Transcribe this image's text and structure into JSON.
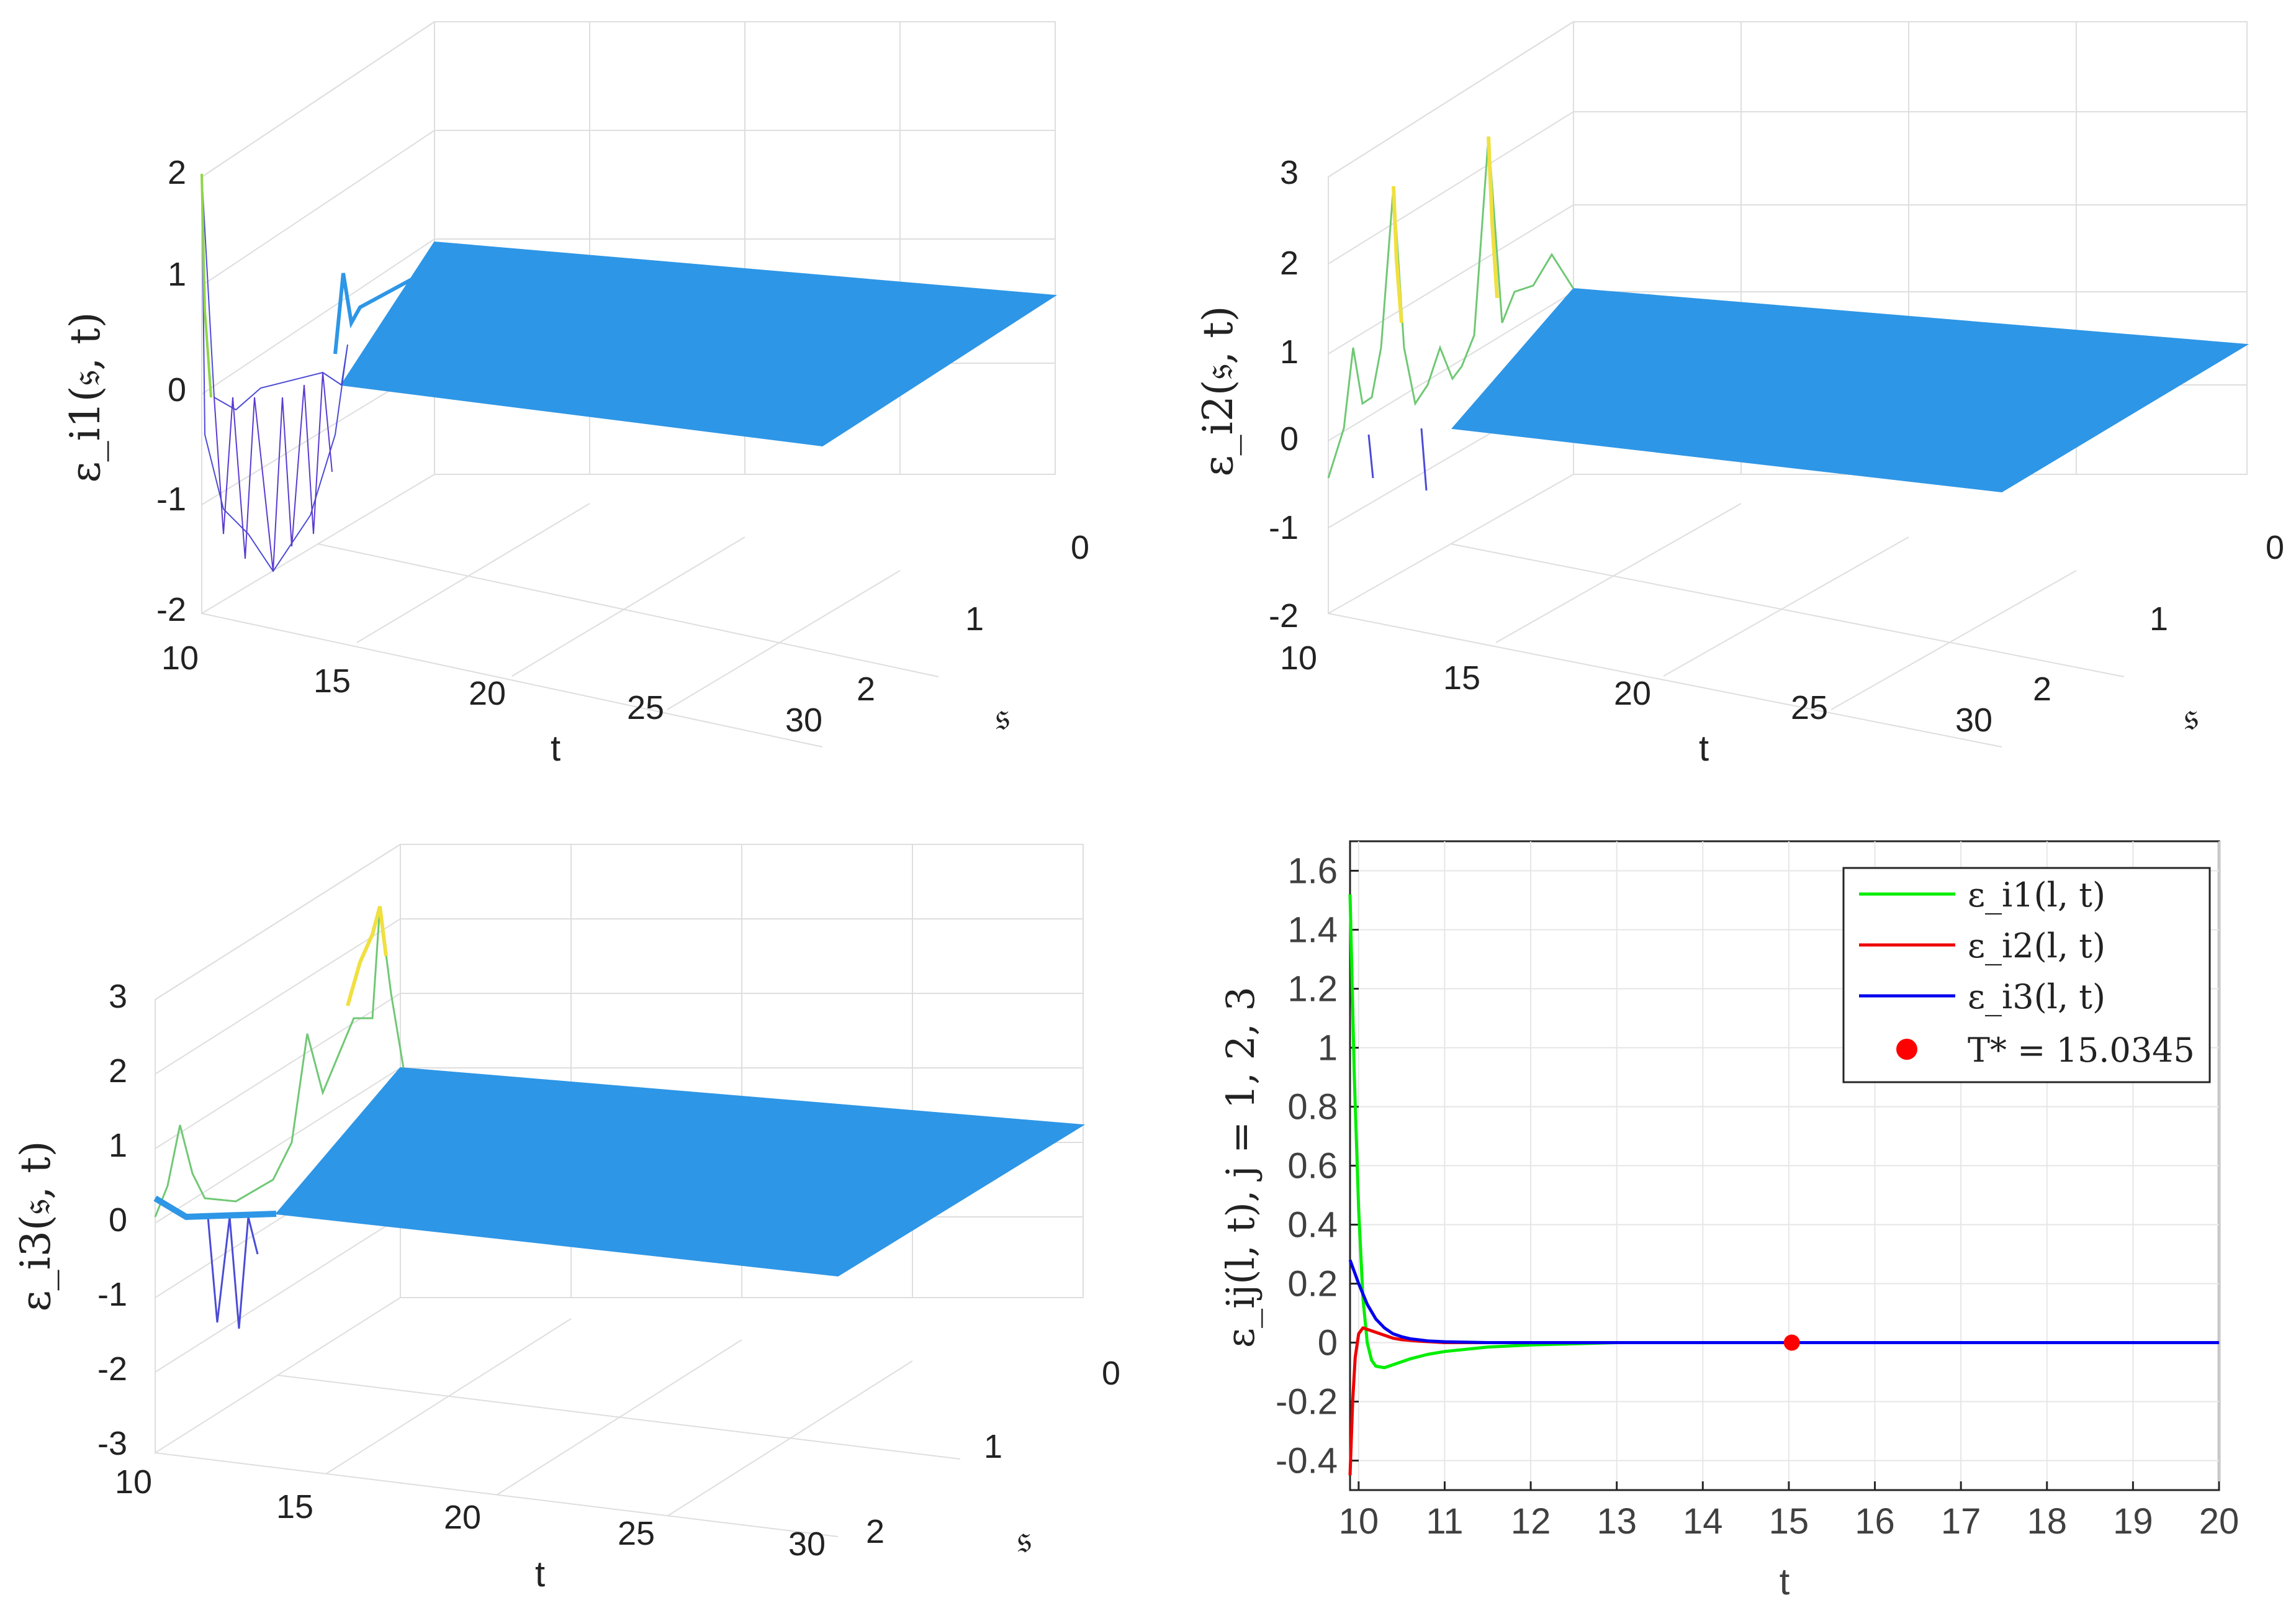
{
  "chart_data": [
    {
      "type": "surface",
      "zlabel": "ε_i1(𝔰, t)",
      "xlabel": "t",
      "ylabel": "𝔰",
      "xticks": [
        "10",
        "15",
        "20",
        "25",
        "30"
      ],
      "yticks": [
        "0",
        "1",
        "2"
      ],
      "zticks": [
        "2",
        "1",
        "0",
        "-1",
        "-2"
      ],
      "xlim": [
        10,
        30
      ],
      "ylim": [
        0,
        2
      ],
      "zlim": [
        -2,
        2
      ]
    },
    {
      "type": "surface",
      "zlabel": "ε_i2(𝔰, t)",
      "xlabel": "t",
      "ylabel": "𝔰",
      "xticks": [
        "10",
        "15",
        "20",
        "25",
        "30"
      ],
      "yticks": [
        "0",
        "1",
        "2"
      ],
      "zticks": [
        "3",
        "2",
        "1",
        "0",
        "-1",
        "-2"
      ],
      "xlim": [
        10,
        30
      ],
      "ylim": [
        0,
        2
      ],
      "zlim": [
        -2,
        3
      ]
    },
    {
      "type": "surface",
      "zlabel": "ε_i3(𝔰, t)",
      "xlabel": "t",
      "ylabel": "𝔰",
      "xticks": [
        "10",
        "15",
        "20",
        "25",
        "30"
      ],
      "yticks": [
        "0",
        "1",
        "2"
      ],
      "zticks": [
        "3",
        "2",
        "1",
        "0",
        "-1",
        "-2",
        "-3"
      ],
      "xlim": [
        10,
        30
      ],
      "ylim": [
        0,
        2
      ],
      "zlim": [
        -3,
        3
      ]
    },
    {
      "type": "line",
      "xlabel": "t",
      "ylabel": "ε_ij(l, t), j = 1, 2, 3",
      "xlim": [
        9.9,
        20
      ],
      "ylim": [
        -0.5,
        1.7
      ],
      "xticks": [
        "10",
        "11",
        "12",
        "13",
        "14",
        "15",
        "16",
        "17",
        "18",
        "19",
        "20"
      ],
      "yticks": [
        "1.6",
        "1.4",
        "1.2",
        "1",
        "0.8",
        "0.6",
        "0.4",
        "0.2",
        "0",
        "-0.2",
        "-0.4"
      ],
      "series": [
        {
          "name": "ε_i1(l, t)",
          "color": "#00ee00",
          "x": [
            9.9,
            9.95,
            10.0,
            10.05,
            10.1,
            10.15,
            10.2,
            10.3,
            10.4,
            10.6,
            10.8,
            11.0,
            11.5,
            12.0,
            13.0,
            20.0
          ],
          "y": [
            1.52,
            0.9,
            0.45,
            0.15,
            0.0,
            -0.06,
            -0.08,
            -0.085,
            -0.075,
            -0.055,
            -0.04,
            -0.03,
            -0.015,
            -0.008,
            0.0,
            0.0
          ]
        },
        {
          "name": "ε_i2(l, t)",
          "color": "#ee0000",
          "x": [
            9.9,
            9.93,
            9.96,
            10.0,
            10.05,
            10.1,
            10.15,
            10.2,
            10.3,
            10.4,
            10.5,
            10.7,
            11.0,
            12.0,
            20.0
          ],
          "y": [
            -0.45,
            -0.2,
            -0.05,
            0.03,
            0.05,
            0.045,
            0.04,
            0.035,
            0.025,
            0.015,
            0.01,
            0.005,
            0.0,
            0.0,
            0.0
          ]
        },
        {
          "name": "ε_i3(l, t)",
          "color": "#0000ee",
          "x": [
            9.9,
            10.0,
            10.1,
            10.2,
            10.3,
            10.4,
            10.5,
            10.6,
            10.8,
            11.0,
            11.5,
            12.0,
            20.0
          ],
          "y": [
            0.28,
            0.2,
            0.13,
            0.08,
            0.05,
            0.03,
            0.02,
            0.013,
            0.006,
            0.003,
            0.0,
            0.0,
            0.0
          ]
        }
      ],
      "marker": {
        "name": "T* = 15.0345",
        "x": 15.0345,
        "y": 0,
        "color": "#ff0000"
      },
      "legend": "top-right"
    }
  ]
}
